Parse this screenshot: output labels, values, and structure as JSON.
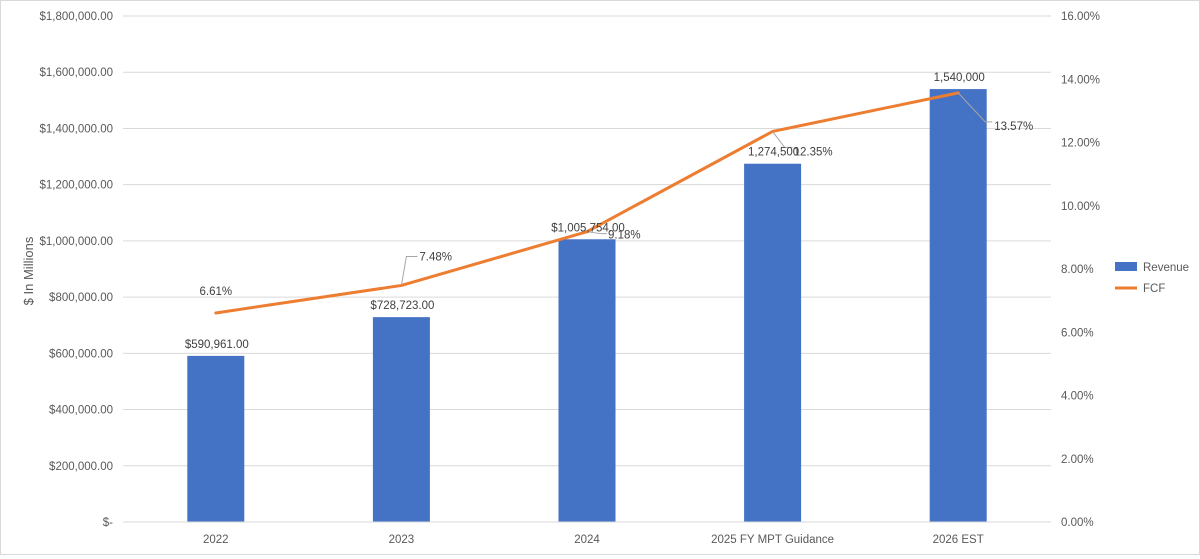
{
  "chart_data": {
    "type": "bar",
    "title": "",
    "xlabel": "",
    "ylabel": "$ In Millions",
    "y2label": "",
    "categories": [
      "2022",
      "2023",
      "2024",
      "2025 FY MPT Guidance",
      "2026 EST"
    ],
    "ylim": [
      0,
      1800000
    ],
    "y2lim": [
      0,
      0.16
    ],
    "y_ticks": [
      "$-",
      "$200,000.00",
      "$400,000.00",
      "$600,000.00",
      "$800,000.00",
      "$1,000,000.00",
      "$1,200,000.00",
      "$1,400,000.00",
      "$1,600,000.00",
      "$1,800,000.00"
    ],
    "y2_ticks": [
      "0.00%",
      "2.00%",
      "4.00%",
      "6.00%",
      "8.00%",
      "10.00%",
      "12.00%",
      "14.00%",
      "16.00%"
    ],
    "grid": true,
    "legend_position": "right",
    "series": [
      {
        "name": "Revenue",
        "type": "bar",
        "axis": "left",
        "color": "#4472c4",
        "values": [
          590961,
          728723,
          1005754,
          1274500,
          1540000
        ],
        "labels": [
          "$590,961.00",
          "$728,723.00",
          "$1,005,754.00",
          "1,274,500",
          "1,540,000"
        ]
      },
      {
        "name": "FCF",
        "type": "line",
        "axis": "right",
        "color": "#ed7d31",
        "values": [
          0.0661,
          0.0748,
          0.0918,
          0.1235,
          0.1357
        ],
        "labels": [
          "6.61%",
          "7.48%",
          "9.18%",
          "12.35%",
          "13.57%"
        ]
      }
    ]
  }
}
